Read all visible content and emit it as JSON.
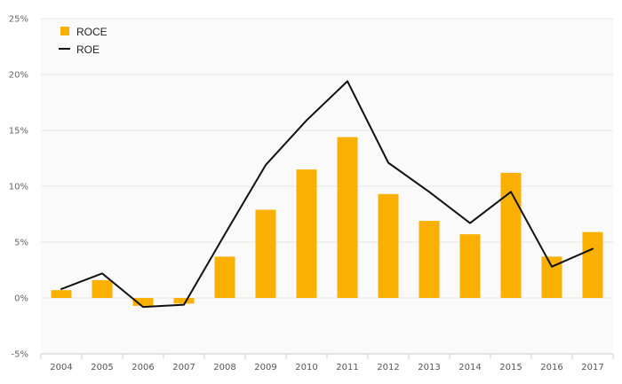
{
  "chart_data": {
    "type": "bar",
    "categories": [
      "2004",
      "2005",
      "2006",
      "2007",
      "2008",
      "2009",
      "2010",
      "2011",
      "2012",
      "2013",
      "2014",
      "2015",
      "2016",
      "2017"
    ],
    "series": [
      {
        "name": "ROCE",
        "type": "bar",
        "color": "#f9b000",
        "values": [
          0.7,
          1.6,
          -0.7,
          -0.5,
          3.7,
          7.9,
          11.5,
          14.4,
          9.3,
          6.9,
          5.7,
          11.2,
          3.7,
          5.9
        ]
      },
      {
        "name": "ROE",
        "type": "line",
        "color": "#111111",
        "values": [
          0.8,
          2.2,
          -0.8,
          -0.6,
          5.7,
          11.9,
          15.9,
          19.4,
          12.1,
          9.5,
          6.7,
          9.5,
          2.8,
          4.4
        ]
      }
    ],
    "ylim": [
      -5,
      25
    ],
    "yticks": [
      -5,
      0,
      5,
      10,
      15,
      20,
      25
    ],
    "ytick_labels": [
      "-5%",
      "0%",
      "5%",
      "10%",
      "15%",
      "20%",
      "25%"
    ],
    "grid": true,
    "legend_position": "top-left",
    "title": "",
    "xlabel": "",
    "ylabel": ""
  },
  "colors": {
    "plot_background": "#fafafa",
    "grid": "#e6e6e6",
    "axis": "#cccccc"
  }
}
